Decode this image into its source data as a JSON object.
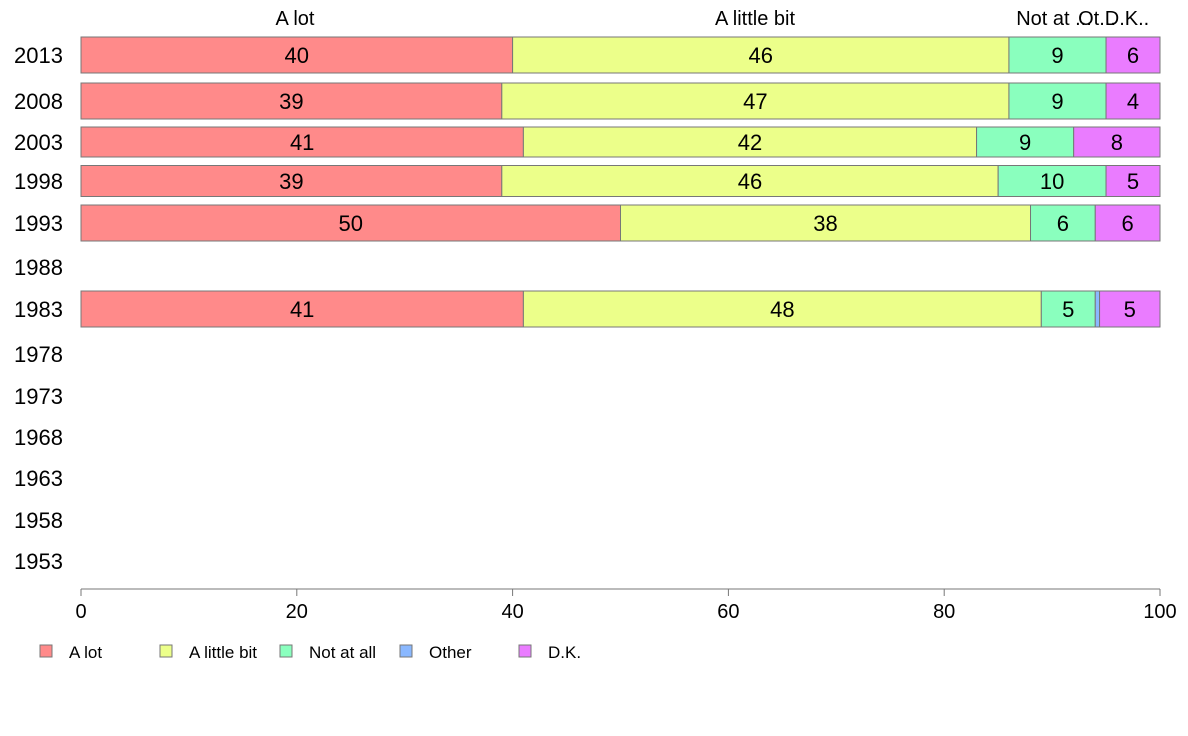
{
  "chart_data": {
    "type": "bar",
    "orientation": "horizontal",
    "stacked": true,
    "categories": [
      "2013",
      "2008",
      "2003",
      "1998",
      "1993",
      "1988",
      "1983",
      "1978",
      "1973",
      "1968",
      "1963",
      "1958",
      "1953"
    ],
    "series": [
      {
        "name": "A lot",
        "color": "#ff8a8a",
        "values": [
          40,
          39,
          41,
          39,
          50,
          null,
          41,
          null,
          null,
          null,
          null,
          null,
          null
        ]
      },
      {
        "name": "A little bit",
        "color": "#ecff8a",
        "values": [
          46,
          47,
          42,
          46,
          38,
          null,
          48,
          null,
          null,
          null,
          null,
          null,
          null
        ]
      },
      {
        "name": "Not at all",
        "color": "#8affbe",
        "values": [
          9,
          9,
          9,
          10,
          6,
          null,
          5,
          null,
          null,
          null,
          null,
          null,
          null
        ]
      },
      {
        "name": "Other",
        "color": "#8ab8ff",
        "values": [
          0,
          0,
          0,
          0,
          0,
          null,
          0.4,
          null,
          null,
          null,
          null,
          null,
          null
        ]
      },
      {
        "name": "D.K.",
        "color": "#ea7cff",
        "values": [
          6,
          4,
          8,
          5,
          6,
          null,
          5,
          null,
          null,
          null,
          null,
          null,
          null
        ]
      }
    ],
    "data_labels": [
      [
        "40",
        "46",
        "9",
        "",
        "6"
      ],
      [
        "39",
        "47",
        "9",
        "",
        "4"
      ],
      [
        "41",
        "42",
        "9",
        "",
        "8"
      ],
      [
        "39",
        "46",
        "10",
        "",
        "5"
      ],
      [
        "50",
        "38",
        "6",
        "",
        "6"
      ],
      null,
      [
        "41",
        "48",
        "5",
        "",
        "5"
      ],
      null,
      null,
      null,
      null,
      null,
      null
    ],
    "top_labels": [
      "A lot",
      "A little bit",
      "Not at ...",
      "Ot...",
      "D.K.."
    ],
    "xlim": [
      0,
      100
    ],
    "xticks": [
      "0",
      "20",
      "40",
      "60",
      "80",
      "100"
    ],
    "grid": false,
    "legend_position": "bottom-left"
  }
}
